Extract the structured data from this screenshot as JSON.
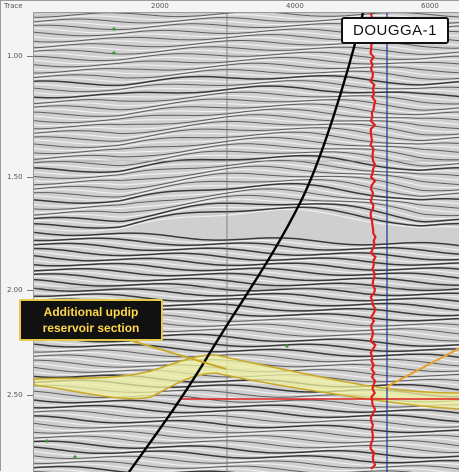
{
  "well": {
    "name": "DOUGGA-1"
  },
  "callout": {
    "line1": "Additional updip",
    "line2": "reservoir section",
    "color": "#ffd84a"
  },
  "axes": {
    "top_labels": [
      "Trace",
      "2000",
      "4000",
      "6000"
    ],
    "left_labels": [
      "1.00",
      "1.50",
      "2.00",
      "2.50"
    ]
  },
  "colors": {
    "well_trace": "#e02020",
    "well_path": "#2030a0",
    "fault": "#000000",
    "reservoir_outline": "#c9a92a",
    "reservoir_fill": "#eef0a0",
    "horizon_line": "#e02020"
  }
}
